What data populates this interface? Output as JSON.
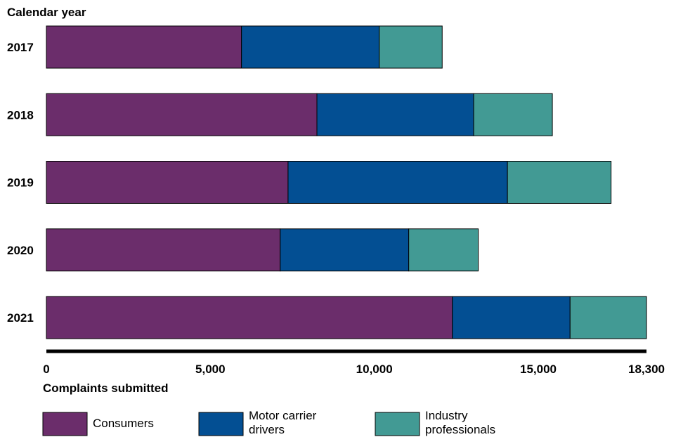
{
  "chart_data": {
    "type": "bar",
    "orientation": "horizontal",
    "stacked": true,
    "title": "",
    "ylabel": "Calendar year",
    "xlabel": "Complaints submitted",
    "categories": [
      "2017",
      "2018",
      "2019",
      "2020",
      "2021"
    ],
    "xlim": [
      0,
      18300
    ],
    "xticks": [
      {
        "value": 0,
        "label": "0"
      },
      {
        "value": 5000,
        "label": "5,000"
      },
      {
        "value": 10000,
        "label": "10,000"
      },
      {
        "value": 15000,
        "label": "15,000"
      },
      {
        "value": 18300,
        "label": "18,300"
      }
    ],
    "grid": false,
    "legend_position": "bottom",
    "series": [
      {
        "name": "Consumers",
        "color": "#6b2d6b",
        "values": [
          5950,
          8250,
          7370,
          7130,
          12380
        ]
      },
      {
        "name": "Motor carrier drivers",
        "color": "#034f93",
        "values": [
          4200,
          4780,
          6690,
          3920,
          3590
        ]
      },
      {
        "name": "Industry professionals",
        "color": "#429a94",
        "values": [
          1920,
          2400,
          3160,
          2120,
          2330
        ]
      }
    ]
  },
  "legend": {
    "items": [
      {
        "label_lines": [
          "Consumers"
        ],
        "color": "#6b2d6b"
      },
      {
        "label_lines": [
          "Motor carrier",
          "drivers"
        ],
        "color": "#034f93"
      },
      {
        "label_lines": [
          "Industry",
          "professionals"
        ],
        "color": "#429a94"
      }
    ]
  }
}
